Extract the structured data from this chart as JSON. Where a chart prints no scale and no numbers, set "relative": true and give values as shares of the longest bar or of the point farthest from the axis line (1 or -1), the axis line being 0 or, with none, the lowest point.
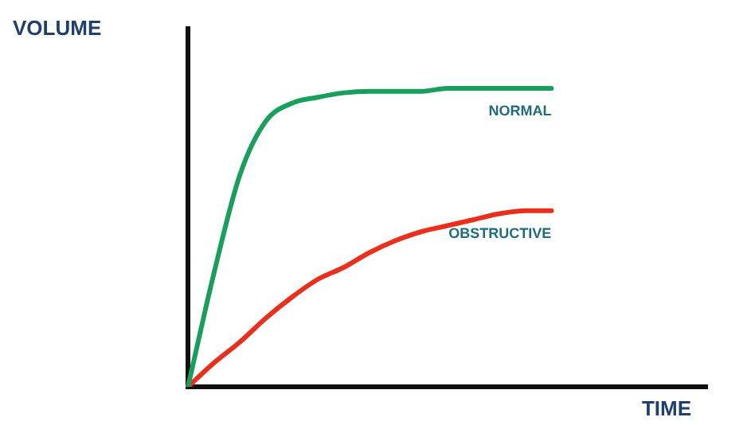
{
  "chart_data": {
    "type": "line",
    "relative": true,
    "xlabel": "TIME",
    "ylabel": "VOLUME",
    "categories": [
      null,
      null,
      null,
      null,
      null,
      null,
      null,
      null,
      null,
      null,
      null,
      null,
      null,
      null,
      null,
      null,
      null,
      null,
      null,
      null,
      null
    ],
    "series": [
      {
        "name": "NORMAL",
        "color": "#1a9e5c",
        "values": [
          0,
          0.38,
          0.71,
          0.89,
          0.95,
          0.97,
          0.985,
          0.99,
          0.99,
          0.99,
          1,
          1,
          1,
          1,
          1,
          null,
          null,
          null,
          null,
          null,
          null
        ]
      },
      {
        "name": "OBSTRUCTIVE",
        "color": "#e8301c",
        "values": [
          0,
          0.08,
          0.15,
          0.23,
          0.3,
          0.36,
          0.4,
          0.45,
          0.49,
          0.52,
          0.54,
          0.56,
          0.58,
          0.59,
          0.59,
          null,
          null,
          null,
          null,
          null,
          null
        ]
      }
    ],
    "grid": false,
    "legend": false,
    "marker": "none",
    "line_style": "solid"
  }
}
